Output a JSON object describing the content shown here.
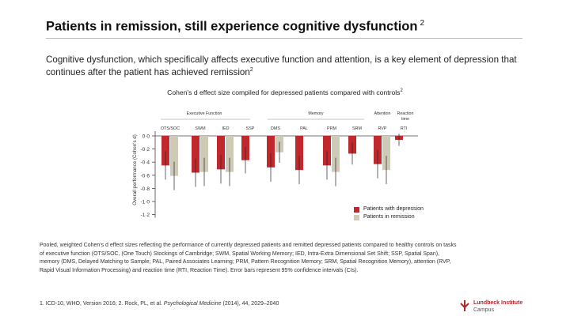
{
  "title": "Patients in remission, still experience cognitive dysfunction",
  "title_ref": "2",
  "intro_text": "Cognitive dysfunction, which specifically affects executive function and attention, is a key element of depression that continues after the patient has achieved remission",
  "intro_ref": "2",
  "chart_data": {
    "type": "bar",
    "title": "Cohen's d effect size compiled for depressed patients compared with controls",
    "title_ref": "2",
    "ylabel": "Overall performance (Cohen's d)",
    "ylim": [
      -1.2,
      0.0
    ],
    "yticks": [
      {
        "value": 0.0,
        "label": "0·0"
      },
      {
        "value": -0.2,
        "label": "-0·2"
      },
      {
        "value": -0.4,
        "label": "-0·4"
      },
      {
        "value": -0.6,
        "label": "-0·6"
      },
      {
        "value": -0.8,
        "label": "-0·8"
      },
      {
        "value": -1.0,
        "label": "-1·0"
      },
      {
        "value": -1.2,
        "label": "-1·2"
      }
    ],
    "groups": [
      {
        "label": "Executive Function",
        "categories": [
          "OTS/SOC",
          "SWM",
          "IED",
          "SSP"
        ]
      },
      {
        "label": "Memory",
        "categories": [
          "DMS",
          "PAL",
          "PRM",
          "SRM"
        ]
      },
      {
        "label": "Attention",
        "categories": [
          "RVP"
        ]
      },
      {
        "label": "Reaction time",
        "categories": [
          "RTI"
        ]
      }
    ],
    "categories": [
      "OTS/SOC",
      "SWM",
      "IED",
      "SSP",
      "DMS",
      "PAL",
      "PRM",
      "SRM",
      "RVP",
      "RTI"
    ],
    "series": [
      {
        "name": "Patients with depression",
        "color": "#c0282d",
        "values": [
          -0.45,
          -0.56,
          -0.51,
          -0.37,
          -0.48,
          -0.52,
          -0.45,
          -0.27,
          -0.43,
          -0.06
        ]
      },
      {
        "name": "Patients in remission",
        "color": "#cfc9b8",
        "values": [
          -0.61,
          -0.55,
          -0.55,
          null,
          -0.25,
          null,
          -0.55,
          null,
          -0.52,
          null
        ]
      }
    ],
    "legend_position": "bottom-right"
  },
  "footnote": "Pooled, weighted Cohen's d effect sizes reflecting the performance of currently depressed patients and remitted depressed patients compared to healthy controls on tasks of executive function (OTS/SOC, (One Touch) Stockings of Cambridge; SWM, Spatial Working Memory; IED, Intra-Extra Dimensional Set Shift; SSP, Spatial Span), memory (DMS, Delayed Matching to Sample; PAL, Paired Associates Learning; PRM, Pattern Recognition Memory; SRM, Spatial Recognition Memory), attention (RVP, Rapid Visual Information Processing) and reaction time (RTI, Reaction Time). Error bars represent 95% confidence intervals (CIs).",
  "reference_prefix": "1. ICD-10, WHO, Version 2016; 2. Rock, PL, et al. ",
  "reference_journal": "Psychological Medicine",
  "reference_suffix": " (2014), 44, 2029–2040",
  "logo": {
    "name": "Lundbeck Institute",
    "sub": "Campus",
    "color": "#b3262b"
  }
}
